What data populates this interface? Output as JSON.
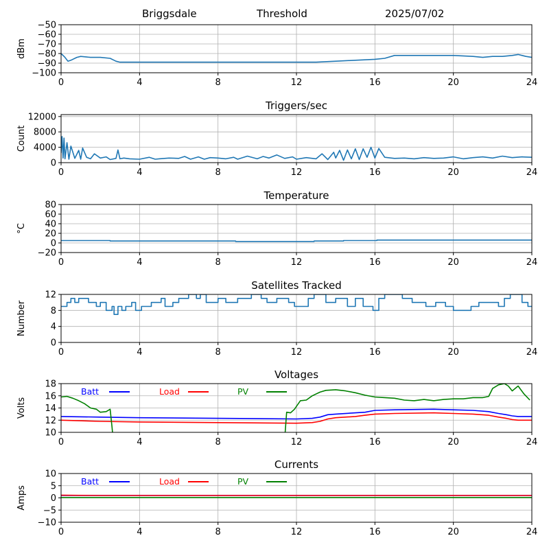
{
  "header": {
    "station": "Briggsdale",
    "mode": "Threshold",
    "date": "2025/07/02"
  },
  "colors": {
    "series": "#1f77b4",
    "grid": "#b0b0b0",
    "batt": "#0000ff",
    "load": "#ff0000",
    "pv": "#008000"
  },
  "chart_data": [
    {
      "id": "signal",
      "type": "line",
      "title": "",
      "xlabel": "",
      "ylabel": "dBm",
      "xlim": [
        0,
        24
      ],
      "ylim": [
        -100,
        -50
      ],
      "xticks": [
        0,
        4,
        8,
        12,
        16,
        20,
        24
      ],
      "yticks": [
        -100,
        -90,
        -80,
        -70,
        -60,
        -50
      ],
      "grid": true,
      "series": [
        {
          "x": [
            0,
            0.2,
            0.35,
            0.5,
            0.8,
            1.0,
            1.5,
            2.0,
            2.5,
            2.7,
            2.8,
            3.0,
            4,
            6,
            8,
            10,
            12,
            13,
            14,
            15,
            16,
            16.5,
            17,
            18,
            19,
            20,
            21,
            21.5,
            22,
            22.5,
            23,
            23.3,
            23.7,
            24
          ],
          "y": [
            -80,
            -84,
            -88,
            -87,
            -84,
            -83,
            -84,
            -84,
            -85,
            -87,
            -88,
            -89,
            -89,
            -89,
            -89,
            -89,
            -89,
            -89,
            -88,
            -87,
            -86,
            -85,
            -82,
            -82,
            -82,
            -82,
            -83,
            -84,
            -83,
            -83,
            -82,
            -81,
            -83,
            -84
          ]
        }
      ]
    },
    {
      "id": "triggers",
      "type": "line",
      "title": "Triggers/sec",
      "xlabel": "",
      "ylabel": "Count",
      "xlim": [
        0,
        24
      ],
      "ylim": [
        0,
        12500
      ],
      "xticks": [
        0,
        4,
        8,
        12,
        16,
        20,
        24
      ],
      "yticks": [
        0,
        4000,
        8000,
        12000
      ],
      "grid": true,
      "series": [
        {
          "x": [
            0,
            0.05,
            0.1,
            0.15,
            0.2,
            0.3,
            0.4,
            0.5,
            0.7,
            0.9,
            1.0,
            1.1,
            1.3,
            1.5,
            1.7,
            2.0,
            2.3,
            2.5,
            2.8,
            2.9,
            3.0,
            3.2,
            3.5,
            4.0,
            4.5,
            4.8,
            5.0,
            5.5,
            6.0,
            6.3,
            6.6,
            7.0,
            7.3,
            7.6,
            8.0,
            8.4,
            8.8,
            9.0,
            9.5,
            10.0,
            10.3,
            10.6,
            11.0,
            11.4,
            11.8,
            12.0,
            12.5,
            13.0,
            13.3,
            13.6,
            13.9,
            14.0,
            14.2,
            14.4,
            14.6,
            14.8,
            15.0,
            15.2,
            15.4,
            15.6,
            15.8,
            16.0,
            16.2,
            16.5,
            17.0,
            17.5,
            18.0,
            18.5,
            19.0,
            19.5,
            20.0,
            20.5,
            21.0,
            21.5,
            22.0,
            22.5,
            23.0,
            23.5,
            24
          ],
          "y": [
            2500,
            6800,
            1200,
            6400,
            1000,
            5200,
            900,
            4300,
            1100,
            3200,
            900,
            3800,
            1400,
            1000,
            2300,
            1200,
            1500,
            800,
            1100,
            3300,
            1000,
            1200,
            1000,
            900,
            1400,
            900,
            1000,
            1200,
            1100,
            1600,
            900,
            1500,
            900,
            1300,
            1200,
            1000,
            1400,
            900,
            1700,
            1000,
            1600,
            1200,
            2000,
            1100,
            1500,
            900,
            1300,
            1000,
            2300,
            800,
            2700,
            1200,
            3200,
            600,
            3300,
            1000,
            3600,
            800,
            3600,
            1400,
            4000,
            1200,
            3700,
            1400,
            1100,
            1200,
            1000,
            1300,
            1100,
            1200,
            1500,
            1000,
            1300,
            1500,
            1200,
            1700,
            1300,
            1500,
            1400
          ]
        }
      ]
    },
    {
      "id": "temperature",
      "type": "line",
      "title": "Temperature",
      "xlabel": "",
      "ylabel": "°C",
      "xlim": [
        0,
        24
      ],
      "ylim": [
        -20,
        80
      ],
      "xticks": [
        0,
        4,
        8,
        12,
        16,
        20,
        24
      ],
      "yticks": [
        -20,
        0,
        20,
        40,
        60,
        80
      ],
      "grid": true,
      "series": [
        {
          "x": [
            0,
            2.5,
            2.5,
            8.9,
            8.9,
            12.9,
            12.9,
            14.4,
            14.4,
            16.1,
            16.1,
            24
          ],
          "y": [
            5,
            5,
            4,
            4,
            3,
            3,
            4,
            4,
            5,
            5,
            6,
            6
          ]
        }
      ]
    },
    {
      "id": "satellites",
      "type": "line",
      "title": "Satellites Tracked",
      "xlabel": "",
      "ylabel": "Number",
      "xlim": [
        0,
        24
      ],
      "ylim": [
        0,
        12
      ],
      "xticks": [
        0,
        4,
        8,
        12,
        16,
        20,
        24
      ],
      "yticks": [
        0,
        4,
        8,
        12
      ],
      "grid": true,
      "series": [
        {
          "x": [
            0,
            0.3,
            0.3,
            0.5,
            0.5,
            0.7,
            0.7,
            0.9,
            0.9,
            1.4,
            1.4,
            1.8,
            1.8,
            2.0,
            2.0,
            2.3,
            2.3,
            2.6,
            2.6,
            2.7,
            2.7,
            2.9,
            2.9,
            3.1,
            3.1,
            3.3,
            3.3,
            3.6,
            3.6,
            3.8,
            3.8,
            4.1,
            4.1,
            4.6,
            4.6,
            5.1,
            5.1,
            5.3,
            5.3,
            5.7,
            5.7,
            6.0,
            6.0,
            6.5,
            6.5,
            6.9,
            6.9,
            7.1,
            7.1,
            7.4,
            7.4,
            8.0,
            8.0,
            8.4,
            8.4,
            9.0,
            9.0,
            9.7,
            9.7,
            10.2,
            10.2,
            10.5,
            10.5,
            11.0,
            11.0,
            11.6,
            11.6,
            11.9,
            11.9,
            12.6,
            12.6,
            12.9,
            12.9,
            13.5,
            13.5,
            14.0,
            14.0,
            14.6,
            14.6,
            15.0,
            15.0,
            15.4,
            15.4,
            15.9,
            15.9,
            16.2,
            16.2,
            16.5,
            16.5,
            17.4,
            17.4,
            17.9,
            17.9,
            18.6,
            18.6,
            19.1,
            19.1,
            19.6,
            19.6,
            20.0,
            20.0,
            20.9,
            20.9,
            21.3,
            21.3,
            22.3,
            22.3,
            22.6,
            22.6,
            22.9,
            22.9,
            23.5,
            23.5,
            23.8,
            23.8,
            24
          ],
          "y": [
            9,
            9,
            10,
            10,
            11,
            11,
            10,
            10,
            11,
            11,
            10,
            10,
            9,
            9,
            10,
            10,
            8,
            8,
            9,
            9,
            7,
            7,
            9,
            9,
            8,
            8,
            9,
            9,
            10,
            10,
            8,
            8,
            9,
            9,
            10,
            10,
            11,
            11,
            9,
            9,
            10,
            10,
            11,
            11,
            12,
            12,
            11,
            11,
            12,
            12,
            10,
            10,
            11,
            11,
            10,
            10,
            11,
            11,
            12,
            12,
            11,
            11,
            10,
            10,
            11,
            11,
            10,
            10,
            9,
            9,
            11,
            11,
            12,
            12,
            10,
            10,
            11,
            11,
            9,
            9,
            11,
            11,
            9,
            9,
            8,
            8,
            11,
            11,
            12,
            12,
            11,
            11,
            10,
            10,
            9,
            9,
            10,
            10,
            9,
            9,
            8,
            8,
            9,
            9,
            10,
            10,
            9,
            9,
            11,
            11,
            12,
            12,
            10,
            10,
            9,
            9
          ]
        }
      ]
    },
    {
      "id": "voltages",
      "type": "line",
      "title": "Voltages",
      "xlabel": "",
      "ylabel": "Volts",
      "xlim": [
        0,
        24
      ],
      "ylim": [
        10,
        18
      ],
      "xticks": [
        0,
        4,
        8,
        12,
        16,
        20,
        24
      ],
      "yticks": [
        10,
        12,
        14,
        16,
        18
      ],
      "grid": true,
      "legend_position": "upper-left-row",
      "series": [
        {
          "name": "Batt",
          "color_key": "batt",
          "x": [
            0,
            2,
            4,
            8,
            12,
            12.8,
            13.2,
            13.6,
            14.0,
            15.0,
            15.5,
            16.0,
            17.0,
            19.0,
            20.0,
            21.0,
            21.8,
            22.3,
            22.7,
            23.0,
            23.3,
            24
          ],
          "y": [
            12.6,
            12.5,
            12.4,
            12.3,
            12.2,
            12.3,
            12.5,
            12.9,
            13.0,
            13.2,
            13.3,
            13.6,
            13.7,
            13.8,
            13.7,
            13.6,
            13.4,
            13.1,
            12.9,
            12.7,
            12.6,
            12.6
          ]
        },
        {
          "name": "Load",
          "color_key": "load",
          "x": [
            0,
            2,
            4,
            8,
            12,
            12.8,
            13.2,
            13.6,
            14.0,
            15.0,
            15.5,
            16.0,
            17.0,
            19.0,
            20.0,
            21.0,
            21.8,
            22.3,
            22.7,
            23.0,
            23.3,
            24
          ],
          "y": [
            12.0,
            11.8,
            11.7,
            11.6,
            11.5,
            11.6,
            11.8,
            12.2,
            12.4,
            12.6,
            12.8,
            13.0,
            13.1,
            13.2,
            13.1,
            13.0,
            12.8,
            12.5,
            12.3,
            12.1,
            12.0,
            12.0
          ]
        },
        {
          "name": "PV",
          "color_key": "pv",
          "x": [
            0,
            0.3,
            0.6,
            0.9,
            1.2,
            1.5,
            1.8,
            2.0,
            2.3,
            2.5,
            2.6,
            2.65,
            11.4,
            11.5,
            11.7,
            11.9,
            12.2,
            12.5,
            12.8,
            13.2,
            13.5,
            14.0,
            14.5,
            15.0,
            15.5,
            16.0,
            16.5,
            17.0,
            17.5,
            18.0,
            18.5,
            19.0,
            19.5,
            20.0,
            20.5,
            21.0,
            21.5,
            21.8,
            22.0,
            22.3,
            22.6,
            22.8,
            23.0,
            23.3,
            23.6,
            23.9
          ],
          "y": [
            15.8,
            15.9,
            15.6,
            15.2,
            14.7,
            14.0,
            13.8,
            13.3,
            13.4,
            13.8,
            10.8,
            9.0,
            9.0,
            13.3,
            13.2,
            13.8,
            15.2,
            15.3,
            16.0,
            16.6,
            16.9,
            17.0,
            16.8,
            16.5,
            16.1,
            15.8,
            15.7,
            15.6,
            15.3,
            15.2,
            15.4,
            15.2,
            15.4,
            15.5,
            15.5,
            15.7,
            15.7,
            15.9,
            17.2,
            17.8,
            18.0,
            17.6,
            16.8,
            17.6,
            16.3,
            15.3
          ]
        }
      ]
    },
    {
      "id": "currents",
      "type": "line",
      "title": "Currents",
      "xlabel": "",
      "ylabel": "Amps",
      "xlim": [
        0,
        24
      ],
      "ylim": [
        -10,
        10
      ],
      "xticks": [
        0,
        4,
        8,
        12,
        16,
        20,
        24
      ],
      "yticks": [
        -10,
        -5,
        0,
        5,
        10
      ],
      "grid": true,
      "legend_position": "upper-left-row",
      "series": [
        {
          "name": "Batt",
          "color_key": "batt",
          "x": [
            0,
            24
          ],
          "y": [
            1.0,
            1.0
          ]
        },
        {
          "name": "Load",
          "color_key": "load",
          "x": [
            0,
            2,
            24
          ],
          "y": [
            1.1,
            1.0,
            1.0
          ]
        },
        {
          "name": "PV",
          "color_key": "pv",
          "x": [
            0,
            24
          ],
          "y": [
            0.1,
            0.1
          ]
        }
      ]
    }
  ]
}
